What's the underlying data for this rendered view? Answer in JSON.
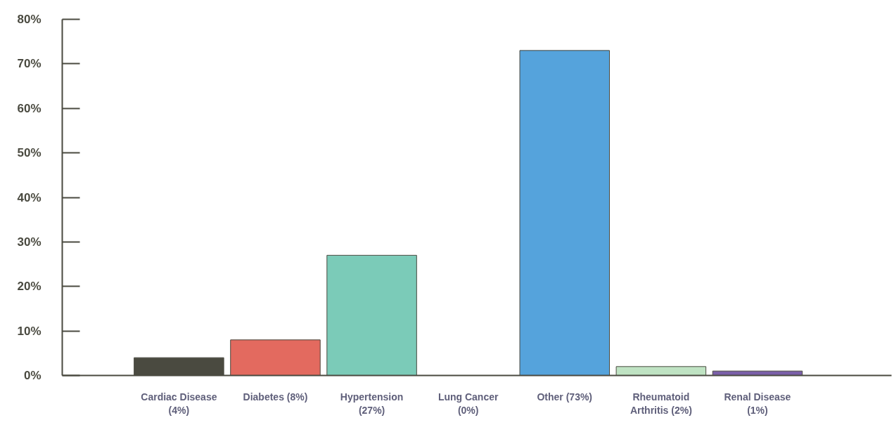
{
  "chart_data": {
    "type": "bar",
    "categories": [
      "Cardiac Disease (4%)",
      "Diabetes (8%)",
      "Hypertension (27%)",
      "Lung Cancer (0%)",
      "Other (73%)",
      "Rheumatoid Arthritis (2%)",
      "Renal Disease (1%)"
    ],
    "values": [
      4,
      8,
      27,
      0,
      73,
      2,
      1
    ],
    "colors": [
      "#4a4a40",
      "#e36a5f",
      "#7bcbb8",
      "#4a4a40",
      "#55a3dc",
      "#bfe3c3",
      "#7a5fa8"
    ],
    "ylim": [
      0,
      80
    ],
    "yticks": [
      {
        "value": 0,
        "label": "0%"
      },
      {
        "value": 10,
        "label": "10%"
      },
      {
        "value": 20,
        "label": "20%"
      },
      {
        "value": 30,
        "label": "30%"
      },
      {
        "value": 40,
        "label": "40%"
      },
      {
        "value": 50,
        "label": "50%"
      },
      {
        "value": 60,
        "label": "60%"
      },
      {
        "value": 70,
        "label": "70%"
      },
      {
        "value": 80,
        "label": "80%"
      }
    ],
    "grid": false
  }
}
